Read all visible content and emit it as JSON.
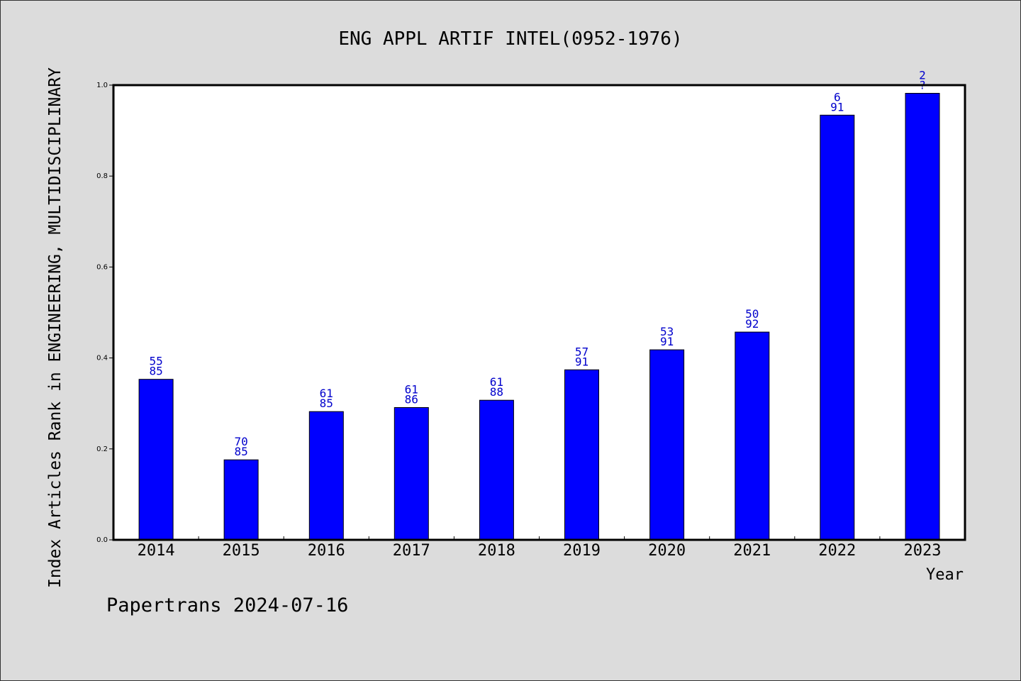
{
  "chart_data": {
    "type": "bar",
    "title": "ENG APPL ARTIF INTEL(0952-1976)",
    "ylabel": "Index Articles Rank in ENGINEERING, MULTIDISCIPLINARY",
    "xlabel": "Year",
    "categories": [
      "2014",
      "2015",
      "2016",
      "2017",
      "2018",
      "2019",
      "2020",
      "2021",
      "2022",
      "2023"
    ],
    "values": [
      0.353,
      0.176,
      0.282,
      0.291,
      0.307,
      0.374,
      0.418,
      0.457,
      0.934,
      0.982
    ],
    "labels_top": [
      "55",
      "70",
      "61",
      "61",
      "61",
      "57",
      "53",
      "50",
      "6",
      "2"
    ],
    "labels_bottom": [
      "85",
      "85",
      "85",
      "86",
      "88",
      "91",
      "91",
      "92",
      "91",
      "?"
    ],
    "ylim": [
      0,
      1.0
    ],
    "yticks": [
      "0.0",
      "0.2",
      "0.4",
      "0.6",
      "0.8",
      "1.0"
    ],
    "grid": false,
    "bar_color": "#0000ff",
    "label_color": "#0000cc"
  },
  "footer": {
    "text": "Papertrans 2024-07-16"
  }
}
